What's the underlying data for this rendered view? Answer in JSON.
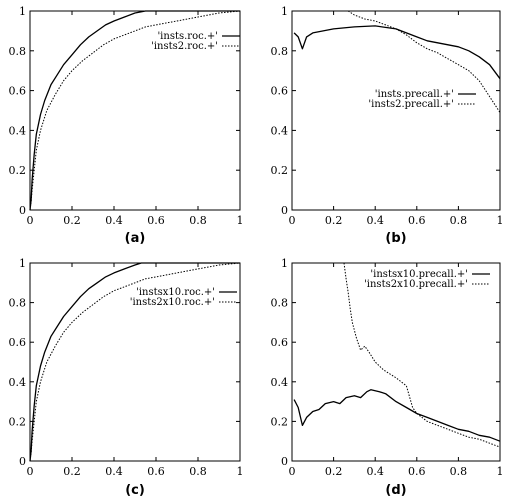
{
  "chart_data": [
    {
      "panel": "a",
      "type": "line",
      "caption": "(a)",
      "xlim": [
        0,
        1
      ],
      "ylim": [
        0,
        1
      ],
      "x_ticks": [
        "0",
        "0.2",
        "0.4",
        "0.6",
        "0.8",
        "1"
      ],
      "y_ticks": [
        "0",
        "0.2",
        "0.4",
        "0.6",
        "0.8",
        "1"
      ],
      "legend_position": "top-right",
      "series": [
        {
          "name": "'insts.roc.+'",
          "style": "solid",
          "points": [
            [
              0,
              0
            ],
            [
              0.005,
              0.05
            ],
            [
              0.01,
              0.15
            ],
            [
              0.02,
              0.28
            ],
            [
              0.03,
              0.38
            ],
            [
              0.05,
              0.48
            ],
            [
              0.07,
              0.55
            ],
            [
              0.1,
              0.63
            ],
            [
              0.13,
              0.68
            ],
            [
              0.16,
              0.73
            ],
            [
              0.2,
              0.78
            ],
            [
              0.24,
              0.83
            ],
            [
              0.28,
              0.87
            ],
            [
              0.32,
              0.9
            ],
            [
              0.36,
              0.93
            ],
            [
              0.4,
              0.95
            ],
            [
              0.45,
              0.97
            ],
            [
              0.5,
              0.99
            ],
            [
              0.55,
              1.0
            ],
            [
              1.0,
              1.0
            ]
          ]
        },
        {
          "name": "'insts2.roc.+'",
          "style": "dotted",
          "points": [
            [
              0,
              0
            ],
            [
              0.005,
              0.04
            ],
            [
              0.01,
              0.1
            ],
            [
              0.02,
              0.2
            ],
            [
              0.03,
              0.3
            ],
            [
              0.05,
              0.4
            ],
            [
              0.08,
              0.5
            ],
            [
              0.12,
              0.58
            ],
            [
              0.16,
              0.65
            ],
            [
              0.2,
              0.7
            ],
            [
              0.25,
              0.75
            ],
            [
              0.3,
              0.79
            ],
            [
              0.35,
              0.83
            ],
            [
              0.4,
              0.86
            ],
            [
              0.45,
              0.88
            ],
            [
              0.5,
              0.9
            ],
            [
              0.55,
              0.92
            ],
            [
              0.6,
              0.93
            ],
            [
              0.65,
              0.94
            ],
            [
              0.7,
              0.95
            ],
            [
              0.75,
              0.96
            ],
            [
              0.8,
              0.97
            ],
            [
              0.85,
              0.98
            ],
            [
              0.9,
              0.99
            ],
            [
              1.0,
              1.0
            ]
          ]
        }
      ]
    },
    {
      "panel": "b",
      "type": "line",
      "caption": "(b)",
      "xlim": [
        0,
        1
      ],
      "ylim": [
        0,
        1
      ],
      "x_ticks": [
        "0",
        "0.2",
        "0.4",
        "0.6",
        "0.8",
        "1"
      ],
      "y_ticks": [
        "0",
        "0.2",
        "0.4",
        "0.6",
        "0.8",
        "1"
      ],
      "legend_position": "center-right",
      "series": [
        {
          "name": "'insts.precall.+'",
          "style": "solid",
          "points": [
            [
              0.01,
              0.89
            ],
            [
              0.03,
              0.87
            ],
            [
              0.05,
              0.81
            ],
            [
              0.07,
              0.87
            ],
            [
              0.1,
              0.89
            ],
            [
              0.15,
              0.9
            ],
            [
              0.2,
              0.91
            ],
            [
              0.3,
              0.92
            ],
            [
              0.4,
              0.925
            ],
            [
              0.5,
              0.91
            ],
            [
              0.55,
              0.89
            ],
            [
              0.6,
              0.87
            ],
            [
              0.65,
              0.85
            ],
            [
              0.7,
              0.84
            ],
            [
              0.75,
              0.83
            ],
            [
              0.8,
              0.82
            ],
            [
              0.85,
              0.8
            ],
            [
              0.9,
              0.77
            ],
            [
              0.95,
              0.73
            ],
            [
              1.0,
              0.66
            ]
          ]
        },
        {
          "name": "'insts2.precall.+'",
          "style": "dotted",
          "points": [
            [
              0.27,
              1.0
            ],
            [
              0.3,
              0.98
            ],
            [
              0.35,
              0.96
            ],
            [
              0.4,
              0.95
            ],
            [
              0.45,
              0.93
            ],
            [
              0.5,
              0.91
            ],
            [
              0.55,
              0.88
            ],
            [
              0.6,
              0.84
            ],
            [
              0.65,
              0.81
            ],
            [
              0.7,
              0.79
            ],
            [
              0.75,
              0.76
            ],
            [
              0.8,
              0.73
            ],
            [
              0.85,
              0.7
            ],
            [
              0.9,
              0.65
            ],
            [
              0.95,
              0.57
            ],
            [
              1.0,
              0.49
            ]
          ]
        }
      ]
    },
    {
      "panel": "c",
      "type": "line",
      "caption": "(c)",
      "xlim": [
        0,
        1
      ],
      "ylim": [
        0,
        1
      ],
      "x_ticks": [
        "0",
        "0.2",
        "0.4",
        "0.6",
        "0.8",
        "1"
      ],
      "y_ticks": [
        "0",
        "0.2",
        "0.4",
        "0.6",
        "0.8",
        "1"
      ],
      "legend_position": "top-right",
      "series": [
        {
          "name": "'instsx10.roc.+'",
          "style": "solid",
          "points": [
            [
              0,
              0
            ],
            [
              0.005,
              0.05
            ],
            [
              0.01,
              0.15
            ],
            [
              0.02,
              0.28
            ],
            [
              0.03,
              0.38
            ],
            [
              0.05,
              0.48
            ],
            [
              0.07,
              0.55
            ],
            [
              0.1,
              0.63
            ],
            [
              0.13,
              0.68
            ],
            [
              0.16,
              0.73
            ],
            [
              0.2,
              0.78
            ],
            [
              0.24,
              0.83
            ],
            [
              0.28,
              0.87
            ],
            [
              0.32,
              0.9
            ],
            [
              0.36,
              0.93
            ],
            [
              0.4,
              0.95
            ],
            [
              0.45,
              0.97
            ],
            [
              0.5,
              0.99
            ],
            [
              0.53,
              1.0
            ],
            [
              1.0,
              1.0
            ]
          ]
        },
        {
          "name": "'insts2x10.roc.+'",
          "style": "dotted",
          "points": [
            [
              0,
              0
            ],
            [
              0.005,
              0.04
            ],
            [
              0.01,
              0.1
            ],
            [
              0.02,
              0.2
            ],
            [
              0.03,
              0.3
            ],
            [
              0.05,
              0.4
            ],
            [
              0.08,
              0.5
            ],
            [
              0.12,
              0.58
            ],
            [
              0.16,
              0.65
            ],
            [
              0.2,
              0.7
            ],
            [
              0.25,
              0.75
            ],
            [
              0.3,
              0.79
            ],
            [
              0.35,
              0.83
            ],
            [
              0.4,
              0.86
            ],
            [
              0.45,
              0.88
            ],
            [
              0.5,
              0.9
            ],
            [
              0.55,
              0.92
            ],
            [
              0.6,
              0.93
            ],
            [
              0.65,
              0.94
            ],
            [
              0.7,
              0.95
            ],
            [
              0.75,
              0.96
            ],
            [
              0.8,
              0.97
            ],
            [
              0.85,
              0.98
            ],
            [
              0.9,
              0.99
            ],
            [
              1.0,
              1.0
            ]
          ]
        }
      ]
    },
    {
      "panel": "d",
      "type": "line",
      "caption": "(d)",
      "xlim": [
        0,
        1
      ],
      "ylim": [
        0,
        1
      ],
      "x_ticks": [
        "0",
        "0.2",
        "0.4",
        "0.6",
        "0.8",
        "1"
      ],
      "y_ticks": [
        "0",
        "0.2",
        "0.4",
        "0.6",
        "0.8",
        "1"
      ],
      "legend_position": "top-right",
      "series": [
        {
          "name": "'instsx10.precall.+'",
          "style": "solid",
          "points": [
            [
              0.01,
              0.31
            ],
            [
              0.03,
              0.27
            ],
            [
              0.05,
              0.18
            ],
            [
              0.07,
              0.22
            ],
            [
              0.1,
              0.25
            ],
            [
              0.13,
              0.26
            ],
            [
              0.16,
              0.29
            ],
            [
              0.2,
              0.3
            ],
            [
              0.23,
              0.29
            ],
            [
              0.26,
              0.32
            ],
            [
              0.3,
              0.33
            ],
            [
              0.33,
              0.32
            ],
            [
              0.36,
              0.35
            ],
            [
              0.38,
              0.36
            ],
            [
              0.42,
              0.35
            ],
            [
              0.45,
              0.34
            ],
            [
              0.5,
              0.3
            ],
            [
              0.55,
              0.27
            ],
            [
              0.6,
              0.24
            ],
            [
              0.65,
              0.22
            ],
            [
              0.7,
              0.2
            ],
            [
              0.75,
              0.18
            ],
            [
              0.8,
              0.16
            ],
            [
              0.85,
              0.15
            ],
            [
              0.9,
              0.13
            ],
            [
              0.95,
              0.12
            ],
            [
              1.0,
              0.1
            ]
          ]
        },
        {
          "name": "'insts2x10.precall.+'",
          "style": "dotted",
          "points": [
            [
              0.25,
              1.0
            ],
            [
              0.26,
              0.92
            ],
            [
              0.27,
              0.85
            ],
            [
              0.28,
              0.77
            ],
            [
              0.29,
              0.7
            ],
            [
              0.31,
              0.62
            ],
            [
              0.33,
              0.56
            ],
            [
              0.35,
              0.58
            ],
            [
              0.37,
              0.55
            ],
            [
              0.4,
              0.5
            ],
            [
              0.44,
              0.46
            ],
            [
              0.5,
              0.42
            ],
            [
              0.55,
              0.38
            ],
            [
              0.58,
              0.27
            ],
            [
              0.6,
              0.24
            ],
            [
              0.65,
              0.2
            ],
            [
              0.7,
              0.18
            ],
            [
              0.75,
              0.16
            ],
            [
              0.8,
              0.14
            ],
            [
              0.85,
              0.12
            ],
            [
              0.9,
              0.11
            ],
            [
              0.95,
              0.09
            ],
            [
              1.0,
              0.07
            ]
          ]
        }
      ]
    }
  ]
}
